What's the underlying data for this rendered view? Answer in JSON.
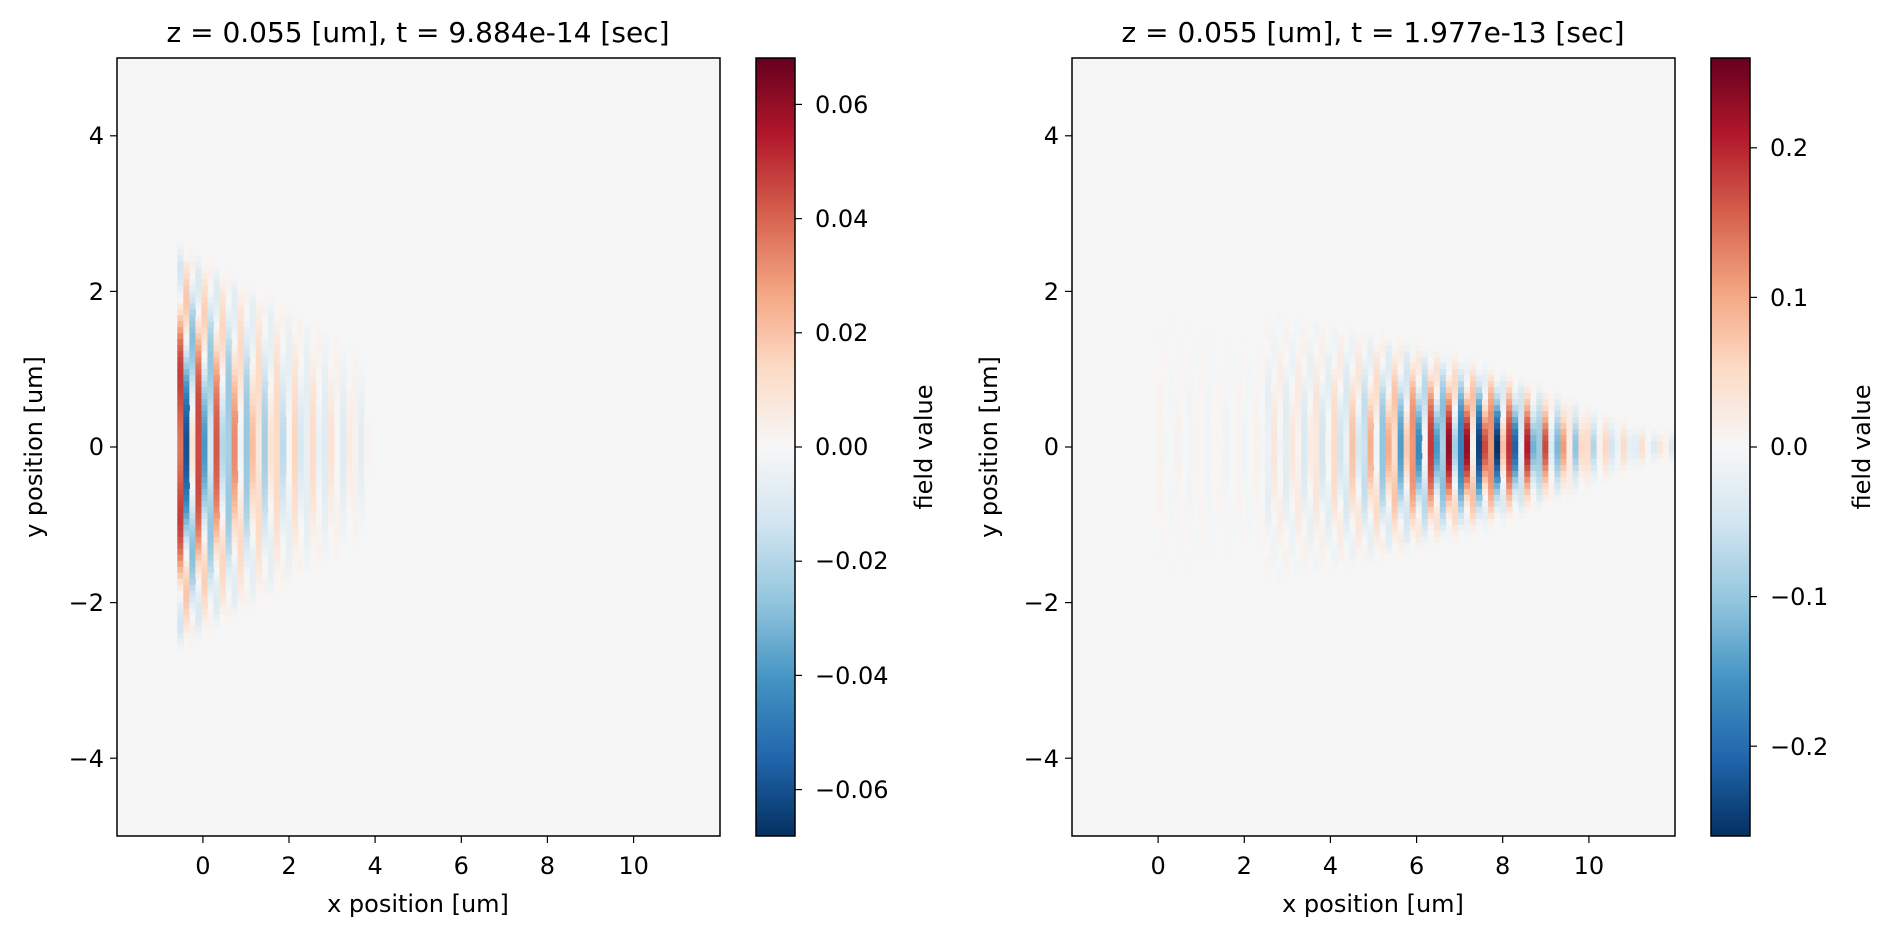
{
  "chart_data": [
    {
      "type": "heatmap",
      "title": "z = 0.055 [um], t = 9.884e-14 [sec]",
      "xlabel": "x position [um]",
      "ylabel": "y position [um]",
      "xlim": [
        -2,
        12
      ],
      "ylim": [
        -5,
        5
      ],
      "x_ticks": [
        0,
        2,
        4,
        6,
        8,
        10
      ],
      "x_tick_labels": [
        "0",
        "2",
        "4",
        "6",
        "8",
        "10"
      ],
      "y_ticks": [
        4,
        2,
        0,
        -2,
        -4
      ],
      "y_tick_labels": [
        "4",
        "2",
        "0",
        "−2",
        "−4"
      ],
      "colormap": "RdBu_r",
      "colorbar": {
        "label": "field value",
        "range": [
          -0.068,
          0.068
        ],
        "ticks": [
          0.06,
          0.04,
          0.02,
          0.0,
          -0.02,
          -0.04,
          -0.06
        ],
        "tick_labels": [
          "0.06",
          "0.04",
          "0.02",
          "0.00",
          "−0.02",
          "−0.04",
          "−0.06"
        ]
      },
      "field": {
        "wave_start_x": -0.6,
        "wave_end_x": 3.6,
        "fringe_period": 0.45,
        "peak_amplitude": 0.068,
        "half_width_at_start": 2.4,
        "half_width_at_end": 1.2,
        "curvature": 0.05
      }
    },
    {
      "type": "heatmap",
      "title": "z = 0.055 [um], t = 1.977e-13 [sec]",
      "xlabel": "x position [um]",
      "ylabel": "y position [um]",
      "xlim": [
        -2,
        12
      ],
      "ylim": [
        -5,
        5
      ],
      "x_ticks": [
        0,
        2,
        4,
        6,
        8,
        10
      ],
      "x_tick_labels": [
        "0",
        "2",
        "4",
        "6",
        "8",
        "10"
      ],
      "y_ticks": [
        4,
        2,
        0,
        -2,
        -4
      ],
      "y_tick_labels": [
        "4",
        "2",
        "0",
        "−2",
        "−4"
      ],
      "colormap": "RdBu_r",
      "colorbar": {
        "label": "field value",
        "range": [
          -0.26,
          0.26
        ],
        "ticks": [
          0.2,
          0.1,
          0.0,
          -0.1,
          -0.2
        ],
        "tick_labels": [
          "0.2",
          "0.1",
          "0.0",
          "−0.1",
          "−0.2"
        ]
      },
      "field": {
        "wave_start_x": 0.0,
        "wave_end_x": 11.5,
        "fringe_period": 0.45,
        "peak_amplitude": 0.26,
        "peak_x": 7.7,
        "half_width_at_start": 2.2,
        "half_width_at_end": 0.2,
        "curvature": 0.12
      }
    }
  ]
}
